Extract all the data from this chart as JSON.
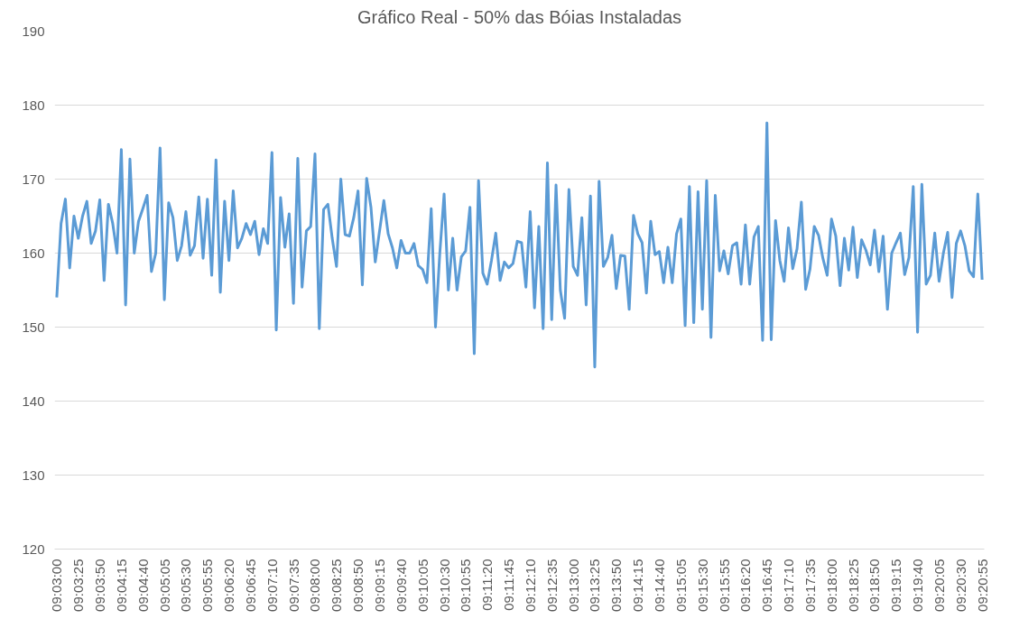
{
  "chart_data": {
    "type": "line",
    "title": "Gráfico Real - 50% das Bóias Instaladas",
    "categories": [
      "09:03:00",
      null,
      null,
      null,
      null,
      "09:03:25",
      null,
      null,
      null,
      null,
      "09:03:50",
      null,
      null,
      null,
      null,
      "09:04:15",
      null,
      null,
      null,
      null,
      "09:04:40",
      null,
      null,
      null,
      null,
      "09:05:05",
      null,
      null,
      null,
      null,
      "09:05:30",
      null,
      null,
      null,
      null,
      "09:05:55",
      null,
      null,
      null,
      null,
      "09:06:20",
      null,
      null,
      null,
      null,
      "09:06:45",
      null,
      null,
      null,
      null,
      "09:07:10",
      null,
      null,
      null,
      null,
      "09:07:35",
      null,
      null,
      null,
      null,
      "09:08:00",
      null,
      null,
      null,
      null,
      "09:08:25",
      null,
      null,
      null,
      null,
      "09:08:50",
      null,
      null,
      null,
      null,
      "09:09:15",
      null,
      null,
      null,
      null,
      "09:09:40",
      null,
      null,
      null,
      null,
      "09:10:05",
      null,
      null,
      null,
      null,
      "09:10:30",
      null,
      null,
      null,
      null,
      "09:10:55",
      null,
      null,
      null,
      null,
      "09:11:20",
      null,
      null,
      null,
      null,
      "09:11:45",
      null,
      null,
      null,
      null,
      "09:12:10",
      null,
      null,
      null,
      null,
      "09:12:35",
      null,
      null,
      null,
      null,
      "09:13:00",
      null,
      null,
      null,
      null,
      "09:13:25",
      null,
      null,
      null,
      null,
      "09:13:50",
      null,
      null,
      null,
      null,
      "09:14:15",
      null,
      null,
      null,
      null,
      "09:14:40",
      null,
      null,
      null,
      null,
      "09:15:05",
      null,
      null,
      null,
      null,
      "09:15:30",
      null,
      null,
      null,
      null,
      "09:15:55",
      null,
      null,
      null,
      null,
      "09:16:20",
      null,
      null,
      null,
      null,
      "09:16:45",
      null,
      null,
      null,
      null,
      "09:17:10",
      null,
      null,
      null,
      null,
      "09:17:35",
      null,
      null,
      null,
      null,
      "09:18:00",
      null,
      null,
      null,
      null,
      "09:18:25",
      null,
      null,
      null,
      null,
      "09:18:50",
      null,
      null,
      null,
      null,
      "09:19:15",
      null,
      null,
      null,
      null,
      "09:19:40",
      null,
      null,
      null,
      null,
      "09:20:05",
      null,
      null,
      null,
      null,
      "09:20:30",
      null,
      null,
      null,
      null,
      "09:20:55"
    ],
    "series": [
      {
        "color": "#5b9bd5",
        "values": [
          154,
          164,
          167.3,
          158,
          165,
          162,
          165,
          167,
          161.3,
          163,
          167.2,
          156.3,
          166.6,
          164,
          160,
          174,
          153,
          172.7,
          160,
          164.3,
          166,
          167.8,
          157.5,
          160,
          174.2,
          153.7,
          166.8,
          164.8,
          159,
          161,
          165.6,
          159.7,
          161,
          167.6,
          159.3,
          167.3,
          157,
          172.6,
          154.7,
          167,
          159,
          168.4,
          160.7,
          162,
          164,
          162.5,
          164.3,
          159.8,
          163.3,
          161.3,
          173.6,
          149.6,
          167.5,
          160.8,
          165.3,
          153.2,
          172.8,
          155.4,
          163,
          163.6,
          173.4,
          149.8,
          165.9,
          166.6,
          162,
          158.2,
          170,
          162.5,
          162.3,
          164.8,
          168.4,
          155.7,
          170.1,
          166.2,
          158.8,
          163,
          167.1,
          162.6,
          160.7,
          158,
          161.7,
          160,
          160,
          161.3,
          158.3,
          157.8,
          156,
          166,
          150,
          160,
          168,
          155,
          162,
          155,
          159.5,
          160.3,
          166.2,
          146.4,
          169.8,
          157.3,
          155.8,
          159,
          162.7,
          156.3,
          158.8,
          158,
          158.6,
          161.6,
          161.4,
          155.4,
          165.6,
          152.6,
          163.6,
          149.8,
          172.2,
          151,
          169.2,
          155,
          151.2,
          168.6,
          158.2,
          157,
          164.8,
          153,
          167.7,
          144.6,
          169.7,
          158.2,
          159.4,
          162.4,
          155.2,
          159.7,
          159.6,
          152.4,
          165.1,
          162.6,
          161.4,
          154.6,
          164.3,
          159.8,
          160.2,
          156,
          160.8,
          156,
          162.6,
          164.6,
          150.2,
          169,
          150.6,
          168.3,
          152.4,
          169.8,
          148.6,
          167.8,
          157.6,
          160.3,
          157.2,
          161,
          161.4,
          155.8,
          163.8,
          155.8,
          162.2,
          163.6,
          148.2,
          177.6,
          148.3,
          164.4,
          159,
          156.2,
          163.4,
          157.9,
          160.6,
          166.9,
          155.1,
          157.8,
          163.6,
          162.4,
          159.3,
          157,
          164.6,
          162.3,
          155.6,
          162,
          157.7,
          163.5,
          156.7,
          161.8,
          160.4,
          158.4,
          163.1,
          157.5,
          162.3,
          152.4,
          160,
          161.4,
          162.7,
          157.1,
          159.4,
          169,
          149.3,
          169.3,
          155.8,
          157,
          162.7,
          156.2,
          160,
          162.8,
          154,
          161.3,
          163,
          161,
          157.6,
          156.8,
          168,
          156.4
        ]
      }
    ],
    "ylim": [
      120,
      190
    ],
    "yticks": [
      120,
      130,
      140,
      150,
      160,
      170,
      180,
      190
    ],
    "grid": "y"
  }
}
